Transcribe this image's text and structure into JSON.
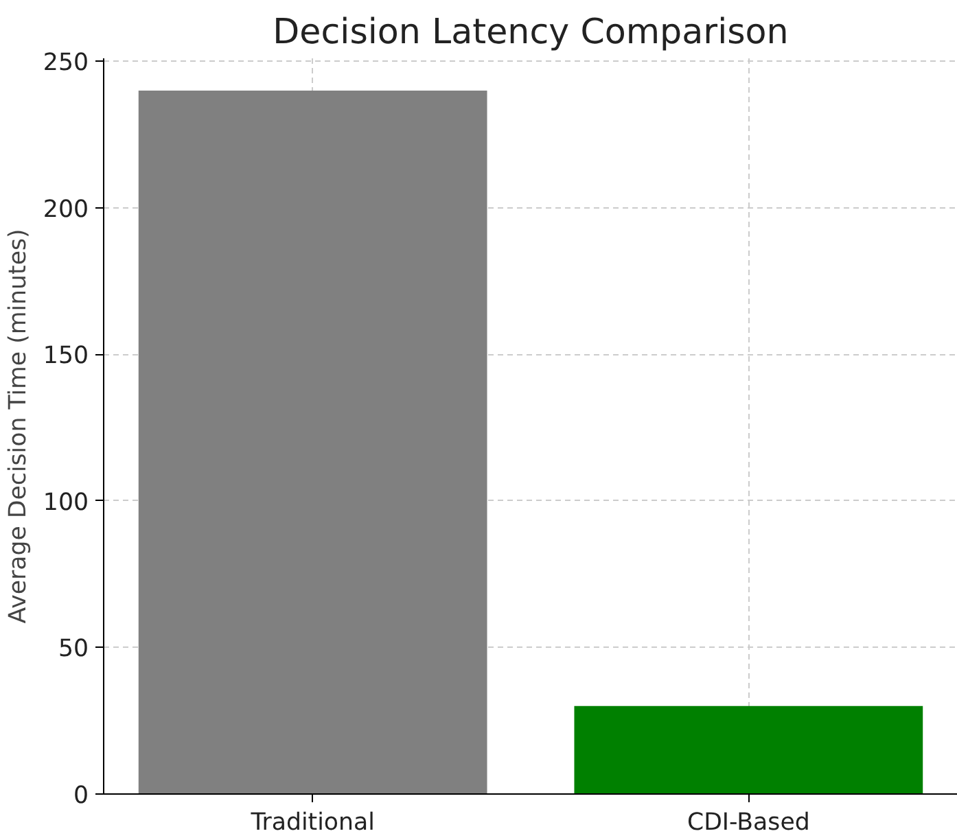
{
  "chart_data": {
    "type": "bar",
    "title": "Decision Latency Comparison",
    "ylabel": "Average Decision Time (minutes)",
    "categories": [
      "Traditional",
      "CDI-Based"
    ],
    "values": [
      240,
      30
    ],
    "colors": [
      "#808080",
      "#008000"
    ],
    "ylim": [
      0,
      251
    ],
    "yticks": [
      0,
      50,
      100,
      150,
      200,
      250
    ],
    "grid": true
  }
}
